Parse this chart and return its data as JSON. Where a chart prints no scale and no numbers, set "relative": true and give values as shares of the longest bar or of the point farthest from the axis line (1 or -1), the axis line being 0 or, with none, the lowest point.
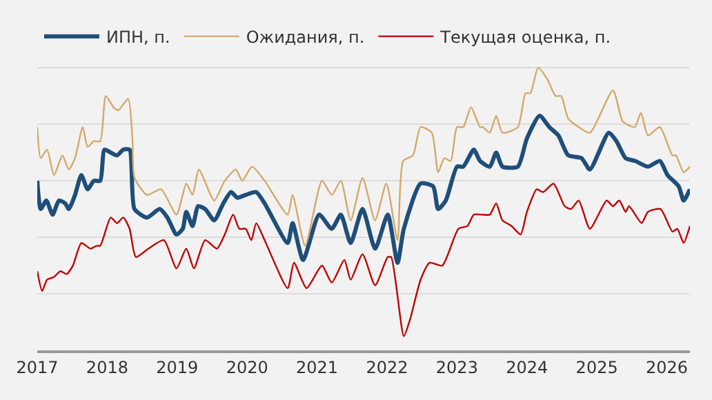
{
  "chart_data": {
    "type": "line",
    "relative": true,
    "tick_labels": "x",
    "grid": "y",
    "legend": "top left",
    "line_style": "solid",
    "marker": "none",
    "xlim": [
      2017,
      2026.33
    ],
    "xticks": [
      2017,
      2018,
      2019,
      2020,
      2021,
      2022,
      2023,
      2024,
      2025,
      2026
    ],
    "series": [
      {
        "name": "ИПН, п.",
        "color": "#1f4e79",
        "x": [
          2017.0,
          2017.05,
          2017.13,
          2017.22,
          2017.31,
          2017.4,
          2017.45,
          2017.54,
          2017.63,
          2017.72,
          2017.81,
          2017.9,
          2017.96,
          2018.05,
          2018.14,
          2018.23,
          2018.32,
          2018.39,
          2018.57,
          2018.75,
          2018.86,
          2018.99,
          2019.08,
          2019.13,
          2019.22,
          2019.3,
          2019.4,
          2019.53,
          2019.66,
          2019.77,
          2019.86,
          2019.98,
          2020.13,
          2020.25,
          2020.58,
          2020.65,
          2020.8,
          2021.03,
          2021.21,
          2021.34,
          2021.48,
          2021.65,
          2021.83,
          2022.01,
          2022.15,
          2022.24,
          2022.48,
          2022.66,
          2022.73,
          2022.84,
          2023.0,
          2023.09,
          2023.24,
          2023.33,
          2023.47,
          2023.56,
          2023.65,
          2023.87,
          2024.0,
          2024.18,
          2024.32,
          2024.45,
          2024.59,
          2024.78,
          2024.9,
          2025.17,
          2025.28,
          2025.41,
          2025.55,
          2025.73,
          2025.9,
          2026.01,
          2026.17,
          2026.24,
          2026.33
        ],
        "values": [
          0.6,
          0.5,
          0.53,
          0.48,
          0.53,
          0.52,
          0.5,
          0.55,
          0.62,
          0.57,
          0.6,
          0.6,
          0.71,
          0.7,
          0.69,
          0.71,
          0.71,
          0.5,
          0.47,
          0.5,
          0.47,
          0.41,
          0.43,
          0.49,
          0.44,
          0.51,
          0.5,
          0.46,
          0.52,
          0.56,
          0.54,
          0.55,
          0.56,
          0.52,
          0.38,
          0.45,
          0.32,
          0.48,
          0.43,
          0.48,
          0.38,
          0.5,
          0.36,
          0.48,
          0.31,
          0.43,
          0.59,
          0.58,
          0.5,
          0.53,
          0.65,
          0.65,
          0.71,
          0.67,
          0.65,
          0.7,
          0.65,
          0.65,
          0.75,
          0.83,
          0.79,
          0.76,
          0.69,
          0.68,
          0.64,
          0.77,
          0.74,
          0.68,
          0.67,
          0.65,
          0.67,
          0.62,
          0.58,
          0.53,
          0.57
        ]
      },
      {
        "name": "Ожидания, п.",
        "color": "#d4a86a",
        "x": [
          2017.0,
          2017.05,
          2017.14,
          2017.24,
          2017.36,
          2017.45,
          2017.54,
          2017.65,
          2017.72,
          2017.81,
          2017.9,
          2017.98,
          2018.09,
          2018.16,
          2018.3,
          2018.36,
          2018.39,
          2018.57,
          2018.77,
          2018.99,
          2019.13,
          2019.22,
          2019.31,
          2019.53,
          2019.68,
          2019.84,
          2019.93,
          2020.07,
          2020.25,
          2020.58,
          2020.65,
          2020.83,
          2021.07,
          2021.21,
          2021.34,
          2021.48,
          2021.65,
          2021.83,
          2021.99,
          2022.15,
          2022.23,
          2022.37,
          2022.48,
          2022.64,
          2022.73,
          2022.82,
          2022.91,
          2023.0,
          2023.09,
          2023.2,
          2023.33,
          2023.37,
          2023.47,
          2023.56,
          2023.65,
          2023.87,
          2023.98,
          2024.05,
          2024.16,
          2024.29,
          2024.41,
          2024.49,
          2024.59,
          2024.74,
          2024.9,
          2025.23,
          2025.37,
          2025.54,
          2025.63,
          2025.73,
          2025.9,
          2026.08,
          2026.13,
          2026.24,
          2026.33
        ],
        "values": [
          0.79,
          0.68,
          0.71,
          0.62,
          0.69,
          0.64,
          0.68,
          0.79,
          0.72,
          0.74,
          0.74,
          0.9,
          0.86,
          0.85,
          0.89,
          0.75,
          0.61,
          0.55,
          0.57,
          0.48,
          0.59,
          0.55,
          0.64,
          0.53,
          0.6,
          0.64,
          0.6,
          0.65,
          0.6,
          0.48,
          0.55,
          0.37,
          0.6,
          0.55,
          0.6,
          0.46,
          0.61,
          0.46,
          0.59,
          0.39,
          0.67,
          0.69,
          0.79,
          0.77,
          0.63,
          0.68,
          0.67,
          0.79,
          0.79,
          0.86,
          0.79,
          0.79,
          0.77,
          0.83,
          0.77,
          0.79,
          0.91,
          0.91,
          1.0,
          0.96,
          0.9,
          0.9,
          0.82,
          0.79,
          0.77,
          0.92,
          0.81,
          0.79,
          0.84,
          0.76,
          0.79,
          0.69,
          0.69,
          0.63,
          0.65
        ]
      },
      {
        "name": "Текущая оценка, п.",
        "color": "#c00000",
        "x": [
          2017.0,
          2017.07,
          2017.14,
          2017.24,
          2017.33,
          2017.42,
          2017.51,
          2017.63,
          2017.76,
          2017.85,
          2017.9,
          2018.05,
          2018.14,
          2018.23,
          2018.32,
          2018.41,
          2018.59,
          2018.81,
          2018.99,
          2019.13,
          2019.24,
          2019.4,
          2019.57,
          2019.68,
          2019.8,
          2019.89,
          2019.98,
          2020.06,
          2020.13,
          2020.25,
          2020.58,
          2020.67,
          2020.85,
          2021.07,
          2021.21,
          2021.39,
          2021.48,
          2021.65,
          2021.83,
          2022.01,
          2022.06,
          2022.24,
          2022.33,
          2022.48,
          2022.61,
          2022.79,
          2023.02,
          2023.15,
          2023.24,
          2023.37,
          2023.47,
          2023.56,
          2023.65,
          2023.78,
          2023.91,
          2024.0,
          2024.14,
          2024.23,
          2024.38,
          2024.54,
          2024.63,
          2024.74,
          2024.9,
          2025.14,
          2025.23,
          2025.32,
          2025.41,
          2025.46,
          2025.64,
          2025.73,
          2025.91,
          2026.08,
          2026.15,
          2026.24,
          2026.33
        ],
        "values": [
          0.28,
          0.21,
          0.25,
          0.26,
          0.28,
          0.27,
          0.3,
          0.38,
          0.36,
          0.37,
          0.37,
          0.47,
          0.45,
          0.47,
          0.43,
          0.33,
          0.36,
          0.39,
          0.29,
          0.36,
          0.29,
          0.39,
          0.36,
          0.41,
          0.48,
          0.43,
          0.43,
          0.39,
          0.45,
          0.39,
          0.22,
          0.31,
          0.22,
          0.3,
          0.24,
          0.32,
          0.25,
          0.34,
          0.23,
          0.33,
          0.33,
          0.05,
          0.11,
          0.25,
          0.31,
          0.3,
          0.43,
          0.44,
          0.48,
          0.48,
          0.48,
          0.52,
          0.46,
          0.44,
          0.41,
          0.49,
          0.57,
          0.56,
          0.59,
          0.51,
          0.5,
          0.53,
          0.43,
          0.53,
          0.51,
          0.53,
          0.49,
          0.51,
          0.45,
          0.49,
          0.5,
          0.42,
          0.43,
          0.38,
          0.44
        ]
      }
    ]
  }
}
